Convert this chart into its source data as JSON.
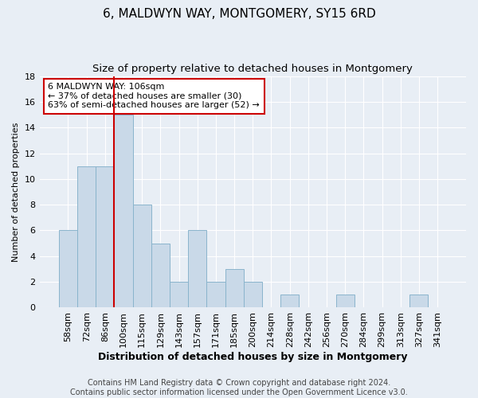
{
  "title": "6, MALDWYN WAY, MONTGOMERY, SY15 6RD",
  "subtitle": "Size of property relative to detached houses in Montgomery",
  "xlabel": "Distribution of detached houses by size in Montgomery",
  "ylabel": "Number of detached properties",
  "categories": [
    "58sqm",
    "72sqm",
    "86sqm",
    "100sqm",
    "115sqm",
    "129sqm",
    "143sqm",
    "157sqm",
    "171sqm",
    "185sqm",
    "200sqm",
    "214sqm",
    "228sqm",
    "242sqm",
    "256sqm",
    "270sqm",
    "284sqm",
    "299sqm",
    "313sqm",
    "327sqm",
    "341sqm"
  ],
  "values": [
    6,
    11,
    11,
    15,
    8,
    5,
    2,
    6,
    2,
    3,
    2,
    0,
    1,
    0,
    0,
    1,
    0,
    0,
    0,
    1,
    0
  ],
  "bar_color": "#c9d9e8",
  "bar_edge_color": "#8ab4cc",
  "property_line_color": "#cc0000",
  "annotation_text": "6 MALDWYN WAY: 106sqm\n← 37% of detached houses are smaller (30)\n63% of semi-detached houses are larger (52) →",
  "annotation_box_color": "#ffffff",
  "annotation_box_edge_color": "#cc0000",
  "ylim": [
    0,
    18
  ],
  "yticks": [
    0,
    2,
    4,
    6,
    8,
    10,
    12,
    14,
    16,
    18
  ],
  "footer_text": "Contains HM Land Registry data © Crown copyright and database right 2024.\nContains public sector information licensed under the Open Government Licence v3.0.",
  "background_color": "#e8eef5",
  "plot_background_color": "#e8eef5",
  "title_fontsize": 11,
  "subtitle_fontsize": 9.5,
  "xlabel_fontsize": 9,
  "ylabel_fontsize": 8,
  "tick_fontsize": 8,
  "footer_fontsize": 7
}
